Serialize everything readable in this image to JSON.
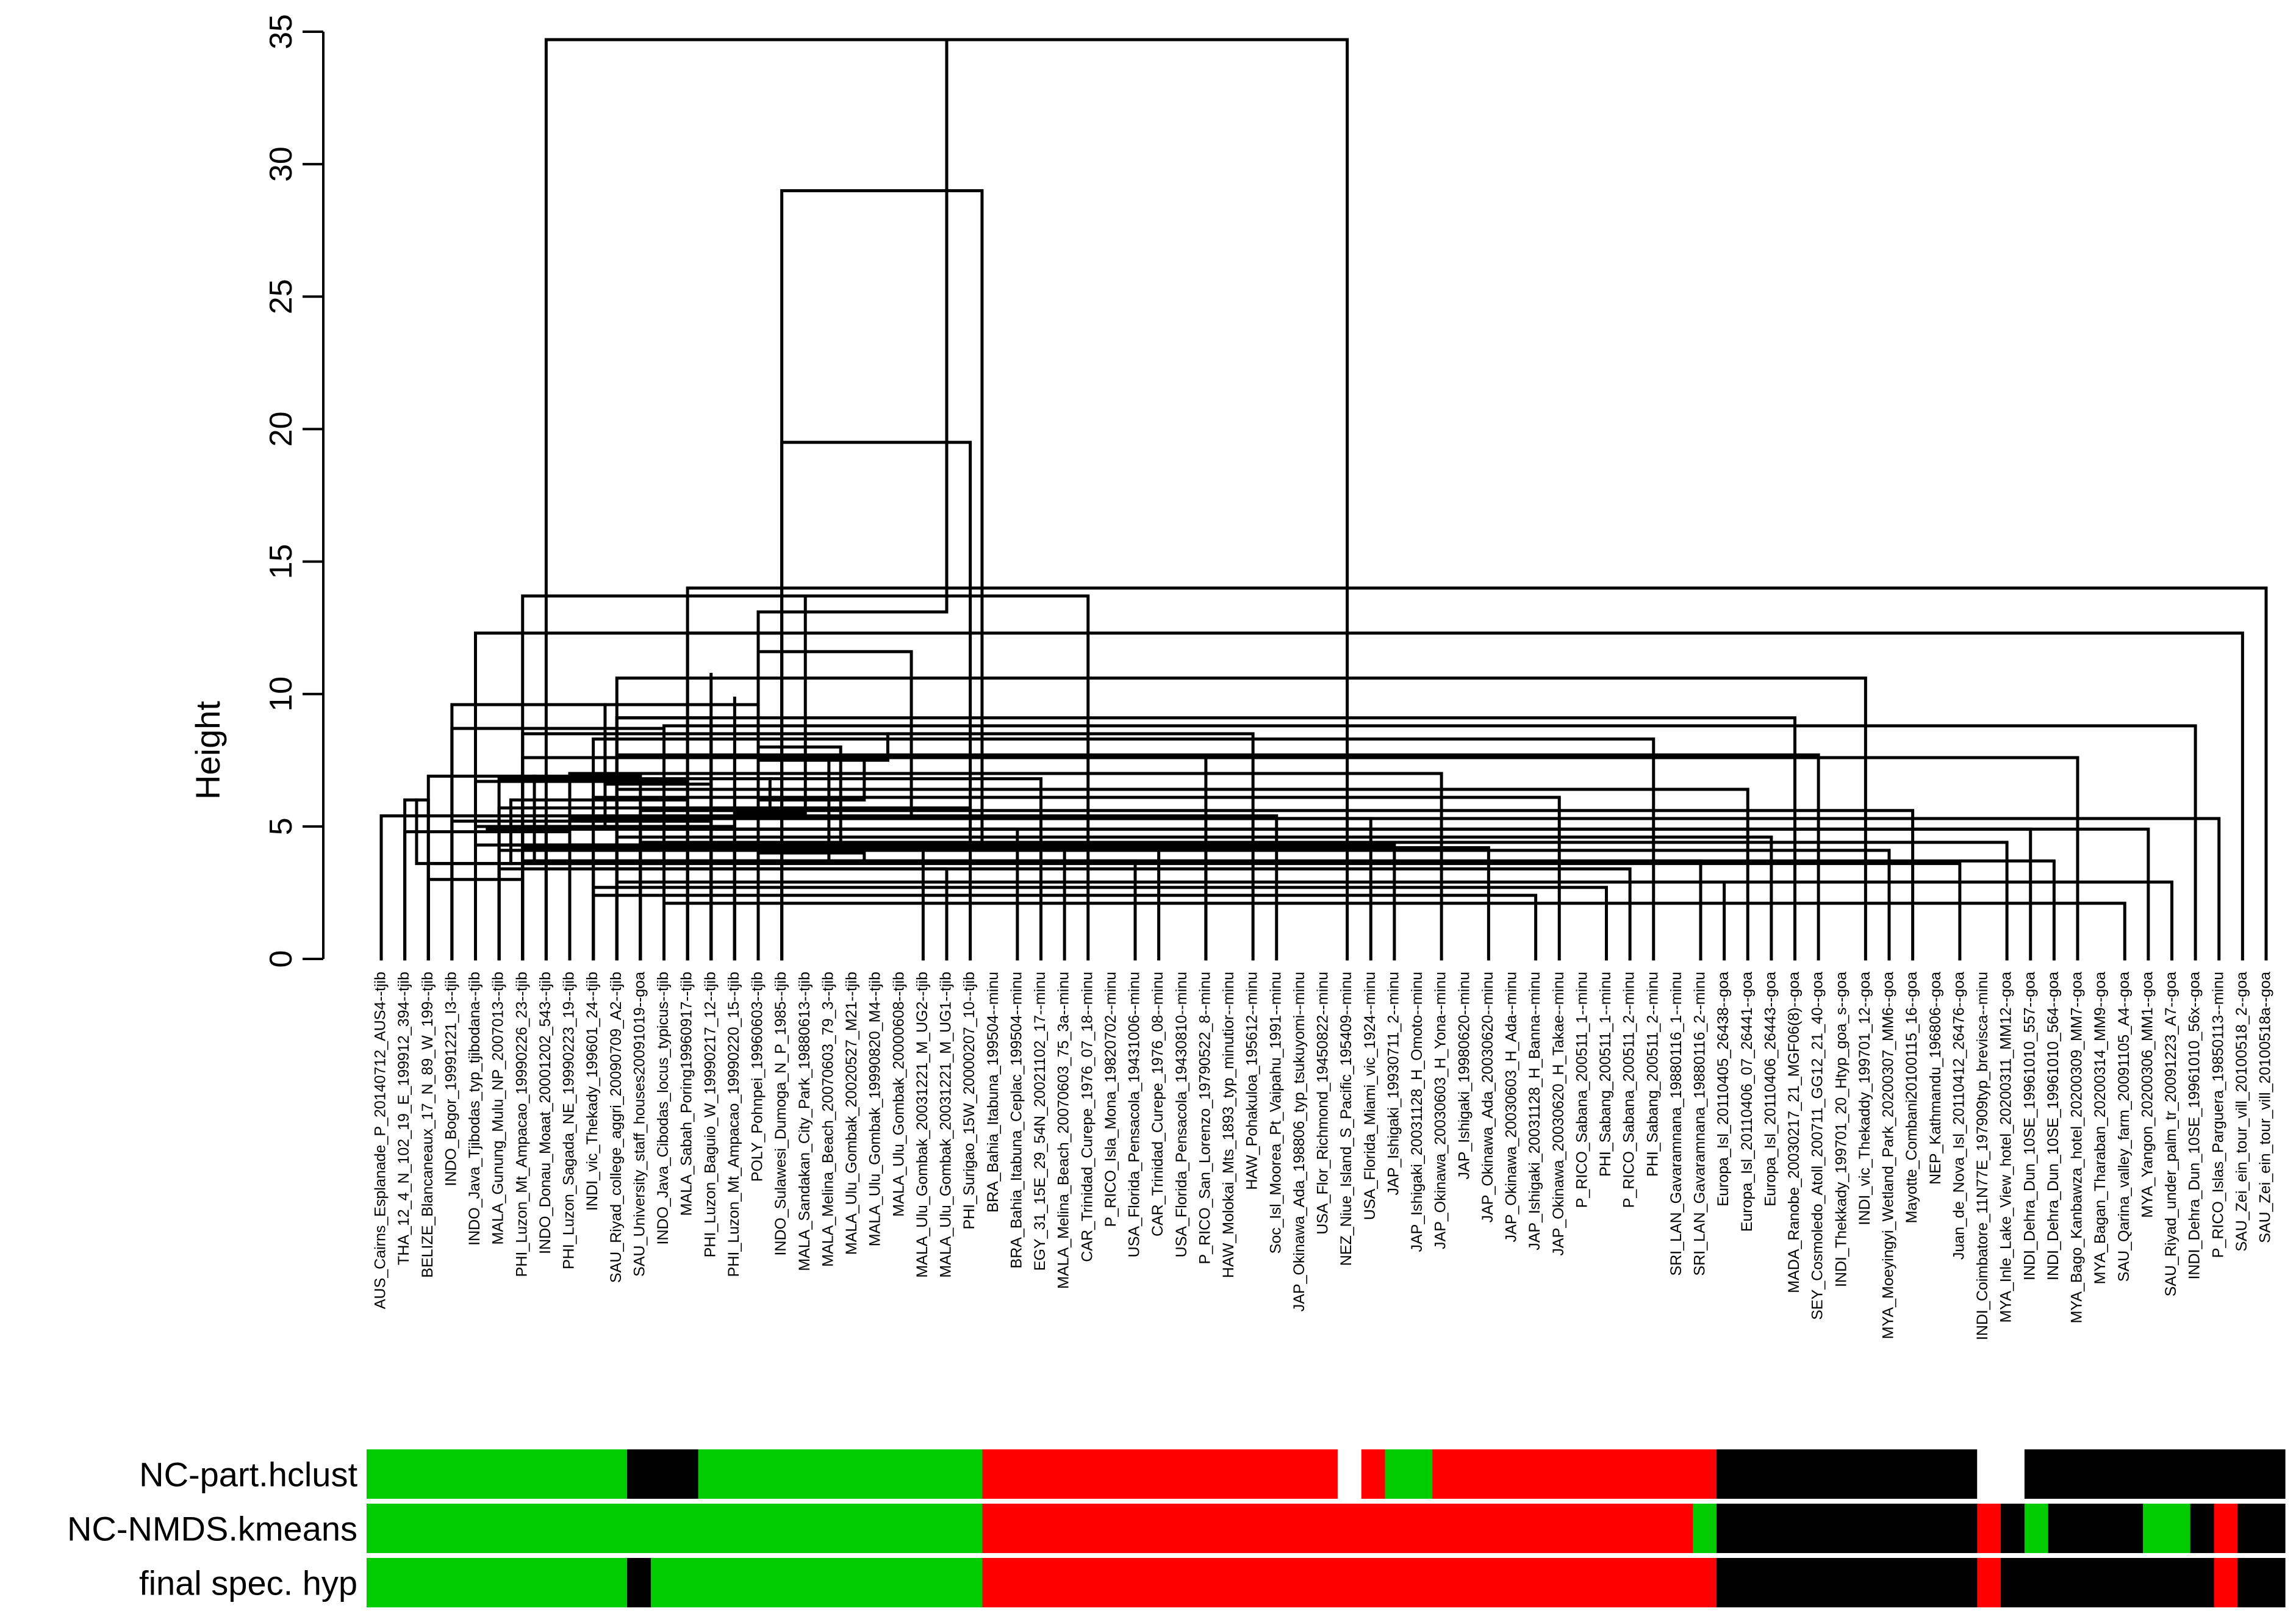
{
  "chart_data": {
    "type": "dendrogram",
    "title": "",
    "ylabel": "Height",
    "xlabel": "",
    "ylim": [
      0,
      35
    ],
    "yticks": [
      0,
      5,
      10,
      15,
      20,
      25,
      30,
      35
    ],
    "leaves": [
      "AUS_Cairns_Esplanade_P_20140712_AUS4--tjib",
      "THA_12_4_N_102_19_E_199912_394--tjib",
      "BELIZE_Blancaneaux_17_N_89_W_199--tjib",
      "INDO_Bogor_19991221_I3--tjib",
      "INDO_Java_Tjibodas_typ_tjibodana--tjib",
      "MALA_Gunung_Mulu_NP_2007013--tjib",
      "PHI_Luzon_Mt_Ampacao_19990226_23--tjib",
      "INDO_Donau_Moaat_20001202_543--tjib",
      "PHI_Luzon_Sagada_NE_19990223_19--tjib",
      "INDI_vic_Thekady_199601_24--tjib",
      "SAU_Riyad_college_aggri_20090709_A2--tjib",
      "SAU_University_staff_houses20091019--goa",
      "INDO_Java_Cibodas_locus_typicus--tjib",
      "MALA_Sabah_Poring19960917--tjib",
      "PHI_Luzon_Baguio_W_19990217_12--tjib",
      "PHI_Luzon_Mt_Ampacao_19990220_15--tjib",
      "POLY_Pohnpei_19960603--tjib",
      "INDO_Sulawesi_Dumoga_N_P_1985--tjib",
      "MALA_Sandakan_City_Park_19880613--tjib",
      "MALA_Melina_Beach_20070603_79_3--tjib",
      "MALA_Ulu_Gombak_20020527_M21--tjib",
      "MALA_Ulu_Gombak_19990820_M4--tjib",
      "MALA_Ulu_Gombak_20000608--tjib",
      "MALA_Ulu_Gombak_20031221_M_UG2--tjib",
      "MALA_Ulu_Gombak_20031221_M_UG1--tjib",
      "PHI_Surigao_15W_20000207_10--tjib",
      "BRA_Bahia_Itabuna_199504--minu",
      "BRA_Bahia_Itabuna_Ceplac_199504--minu",
      "EGY_31_15E_29_54N_20021102_17--minu",
      "MALA_Melina_Beach_20070603_75_3a--minu",
      "CAR_Trinidad_Curepe_1976_07_18--minu",
      "P_RICO_Isla_Mona_19820702--minu",
      "USA_Florida_Pensacola_19431006--minu",
      "CAR_Trinidad_Curepe_1976_08--minu",
      "USA_Florida_Pensacola_19430810--minu",
      "P_RICO_San_Lorenzo_19790522_8--minu",
      "HAW_Molokai_Mts_1893_typ_minutior--minu",
      "HAW_Pohakuloa_195612--minu",
      "Soc_Isl_Moorea_Pt_Vaipahu_1991--minu",
      "JAP_Okinawa_Ada_198806_typ_tsukuyomi--minu",
      "USA_Flor_Richmond_19450822--minu",
      "NEZ_Niue_Island_S_Pacific_195409--minu",
      "USA_Florida_Miami_vic_1924--minu",
      "JAP_Ishigaki_19930711_2--minu",
      "JAP_Ishigaki_20031128_H_Omoto--minu",
      "JAP_Okinawa_20030603_H_Yona--minu",
      "JAP_Ishigaki_19980620--minu",
      "JAP_Okinawa_Ada_20030620--minu",
      "JAP_Okinawa_20030603_H_Ada--minu",
      "JAP_Ishigaki_20031128_H_Banna--minu",
      "JAP_Okinawa_20030620_H_Takae--minu",
      "P_RICO_Sabana_200511_1--minu",
      "PHI_Sabang_200511_1--minu",
      "P_RICO_Sabana_200511_2--minu",
      "PHI_Sabang_200511_2--minu",
      "SRI_LAN_Gavaramnana_19880116_1--minu",
      "SRI_LAN_Gavaramnana_19880116_2--minu",
      "Europa_Isl_20110405_26438--goa",
      "Europa_Isl_20110406_07_26441--goa",
      "Europa_Isl_20110406_26443--goa",
      "MADA_Ranobe_20030217_21_MGF06(8)--goa",
      "SEY_Cosmoledo_Atoll_200711_GG12_21_40--goa",
      "INDI_Thekkady_199701_20_Htyp_goa_s--goa",
      "INDI_vic_Thekaddy_199701_12--goa",
      "MYA_Moeyingyi_Wetland_Park_20200307_MM6--goa",
      "Mayotte_Combani20100115_16--goa",
      "NEP_Kathmandu_196806--goa",
      "Juan_de_Nova_Isl_20110412_26476--goa",
      "INDI_Coimbatore_11N77E_197909typ_brevisca--minu",
      "MYA_Inle_Lake_View_hotel_20200311_MM12--goa",
      "INDI_Dehra_Dun_10SE_19961010_557--goa",
      "INDI_Dehra_Dun_10SE_19961010_564--goa",
      "MYA_Bago_Kanbawza_hotel_20200309_MM7--goa",
      "MYA_Bagan_Tharaban_20200314_MM9--goa",
      "SAU_Qarina_valley_farm_20091105_A4--goa",
      "MYA_Yangon_20200306_MM1--goa",
      "SAU_Riyad_under_palm_tr_20091223_A7--goa",
      "INDI_Dehra_Dun_10SE_19961010_56x--goa",
      "P_RICO_Islas_Parguera_19850113--minu",
      "SAU_Zei_ein_tour_vill_20100518_2--goa",
      "SAU_Zei_ein_tour_vill_20100518a--goa"
    ],
    "merges": [
      [
        0,
        7,
        5.4
      ],
      [
        1,
        2,
        6.0
      ],
      [
        1,
        8,
        4.8
      ],
      [
        2,
        6,
        3.0
      ],
      [
        2,
        9,
        3.6
      ],
      [
        2,
        11,
        6.9
      ],
      [
        3,
        12,
        8.7
      ],
      [
        3,
        14,
        5.2
      ],
      [
        3,
        16,
        9.6
      ],
      [
        4,
        15,
        5.0
      ],
      [
        4,
        16,
        4.3
      ],
      [
        4,
        17,
        12.3
      ],
      [
        5,
        23,
        4.3
      ],
      [
        5,
        24,
        3.4
      ],
      [
        5,
        25,
        5.7
      ],
      [
        5,
        27,
        4.9
      ],
      [
        5,
        28,
        6.8
      ],
      [
        5,
        29,
        4.1
      ],
      [
        6,
        30,
        13.7
      ],
      [
        6,
        32,
        3.7
      ],
      [
        6,
        33,
        4.2
      ],
      [
        6,
        35,
        3.7
      ],
      [
        6,
        35,
        7.6
      ],
      [
        6,
        37,
        8.5
      ],
      [
        7,
        38,
        5.4
      ],
      [
        7,
        41,
        34.7
      ],
      [
        8,
        42,
        5.3
      ],
      [
        8,
        43,
        4.3
      ],
      [
        8,
        45,
        7.0
      ],
      [
        8,
        47,
        4.2
      ],
      [
        9,
        49,
        2.4
      ],
      [
        9,
        50,
        6.1
      ],
      [
        9,
        52,
        2.7
      ],
      [
        9,
        53,
        3.4
      ],
      [
        9,
        54,
        8.3
      ],
      [
        9,
        56,
        3.7
      ],
      [
        10,
        57,
        2.9
      ],
      [
        10,
        58,
        6.4
      ],
      [
        10,
        59,
        4.6
      ],
      [
        10,
        60,
        9.1
      ],
      [
        10,
        61,
        7.7
      ],
      [
        10,
        63,
        10.6
      ],
      [
        11,
        64,
        4.1
      ],
      [
        11,
        65,
        5.6
      ],
      [
        11,
        67,
        3.6
      ],
      [
        11,
        69,
        4.4
      ],
      [
        11,
        70,
        4.9
      ],
      [
        11,
        71,
        3.7
      ],
      [
        12,
        72,
        7.6
      ],
      [
        12,
        74,
        2.1
      ],
      [
        12,
        75,
        4.9
      ],
      [
        12,
        76,
        2.9
      ],
      [
        12,
        77,
        8.8
      ],
      [
        12,
        78,
        5.3
      ],
      [
        13,
        79,
        12.3
      ],
      [
        13,
        80,
        14.0
      ],
      [
        13,
        82,
        3.6
      ],
      [
        13,
        83,
        4.9
      ],
      [
        13,
        84,
        6.7
      ],
      [
        13,
        85,
        6.0
      ],
      [
        14,
        86,
        3.7
      ],
      [
        14,
        88,
        5.2
      ],
      [
        14,
        89,
        6.6
      ],
      [
        14,
        90,
        8.3
      ],
      [
        14,
        91,
        9.1
      ],
      [
        14,
        93,
        10.8
      ],
      [
        15,
        95,
        9.9
      ],
      [
        15,
        96,
        4.1
      ],
      [
        15,
        97,
        5.7
      ],
      [
        15,
        98,
        3.7
      ],
      [
        15,
        99,
        5.5
      ],
      [
        15,
        100,
        7.6
      ],
      [
        16,
        101,
        8.0
      ],
      [
        16,
        102,
        4.0
      ],
      [
        16,
        103,
        6.0
      ],
      [
        16,
        104,
        7.5
      ],
      [
        16,
        105,
        11.6
      ],
      [
        16,
        106,
        13.1
      ],
      [
        17,
        107,
        19.5
      ],
      [
        17,
        108,
        29.0
      ]
    ],
    "color_bars": [
      {
        "label": "NC-part.hclust",
        "segments": [
          {
            "color": "#00cc00",
            "count": 11
          },
          {
            "color": "#000000",
            "count": 3
          },
          {
            "color": "#00cc00",
            "count": 12
          },
          {
            "color": "#ff0000",
            "count": 15
          },
          {
            "color": "#ffffff",
            "count": 1
          },
          {
            "color": "#ff0000",
            "count": 1
          },
          {
            "color": "#00cc00",
            "count": 2
          },
          {
            "color": "#ff0000",
            "count": 12
          },
          {
            "color": "#000000",
            "count": 11
          },
          {
            "color": "#ffffff",
            "count": 2
          },
          {
            "color": "#000000",
            "count": 11
          }
        ]
      },
      {
        "label": "NC-NMDS.kmeans",
        "segments": [
          {
            "color": "#00cc00",
            "count": 26
          },
          {
            "color": "#ff0000",
            "count": 30
          },
          {
            "color": "#00cc00",
            "count": 1
          },
          {
            "color": "#000000",
            "count": 11
          },
          {
            "color": "#ff0000",
            "count": 1
          },
          {
            "color": "#000000",
            "count": 1
          },
          {
            "color": "#00cc00",
            "count": 1
          },
          {
            "color": "#000000",
            "count": 4
          },
          {
            "color": "#00cc00",
            "count": 2
          },
          {
            "color": "#000000",
            "count": 1
          },
          {
            "color": "#ff0000",
            "count": 1
          },
          {
            "color": "#000000",
            "count": 2
          }
        ]
      },
      {
        "label": "final spec. hyp",
        "segments": [
          {
            "color": "#00cc00",
            "count": 11
          },
          {
            "color": "#000000",
            "count": 1
          },
          {
            "color": "#00cc00",
            "count": 14
          },
          {
            "color": "#ff0000",
            "count": 31
          },
          {
            "color": "#000000",
            "count": 11
          },
          {
            "color": "#ff0000",
            "count": 1
          },
          {
            "color": "#000000",
            "count": 9
          },
          {
            "color": "#ff0000",
            "count": 1
          },
          {
            "color": "#000000",
            "count": 2
          }
        ]
      }
    ]
  }
}
